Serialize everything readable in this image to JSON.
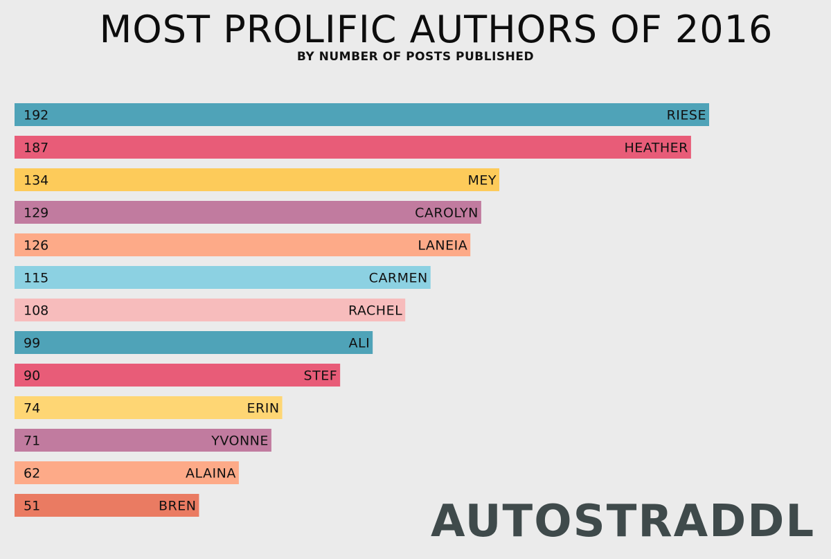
{
  "title": "MOST PROLIFIC AUTHORS OF 2016",
  "subtitle": "BY NUMBER OF POSTS PUBLISHED",
  "logo_text": "AUTOSTRADDLE",
  "chart_data": {
    "type": "bar",
    "orientation": "horizontal",
    "title": "MOST PROLIFIC AUTHORS OF 2016",
    "subtitle": "BY NUMBER OF POSTS PUBLISHED",
    "categories": [
      "RIESE",
      "HEATHER",
      "MEY",
      "CAROLYN",
      "LANEIA",
      "CARMEN",
      "RACHEL",
      "ALI",
      "STEF",
      "ERIN",
      "YVONNE",
      "ALAINA",
      "BREN"
    ],
    "values": [
      192,
      187,
      134,
      129,
      126,
      115,
      108,
      99,
      90,
      74,
      71,
      62,
      51
    ],
    "colors": [
      "#4fa3b8",
      "#e85c78",
      "#fdcb5a",
      "#c17b9f",
      "#fdaa88",
      "#8cd1e2",
      "#f7bcbc",
      "#4fa3b8",
      "#e85c78",
      "#fed674",
      "#c17b9f",
      "#fdaa88",
      "#ea7b62"
    ],
    "xlim": [
      0,
      192
    ],
    "grid": false,
    "legend": "none"
  }
}
